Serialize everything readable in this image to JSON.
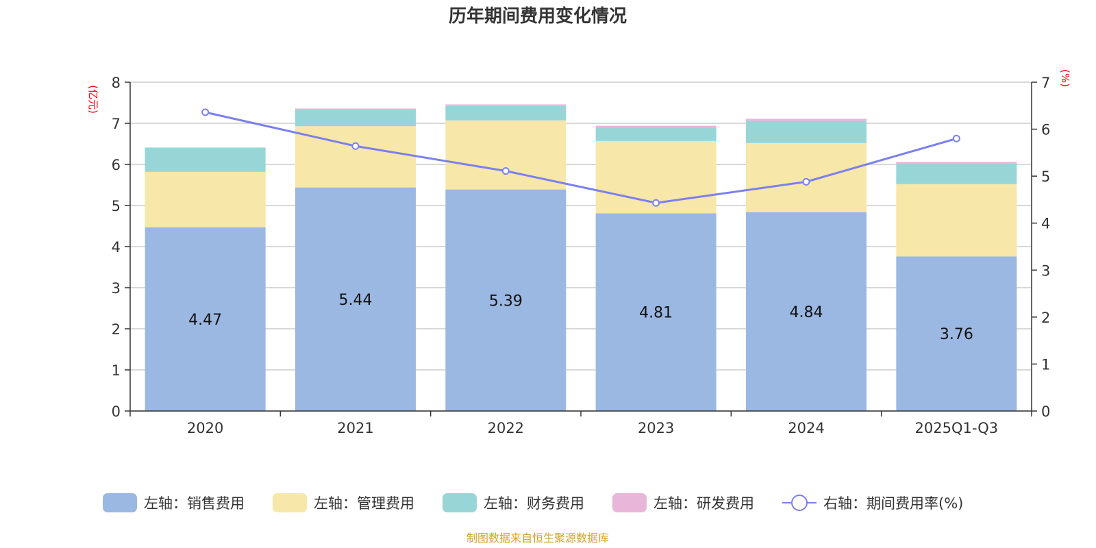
{
  "chart_data": {
    "type": "bar",
    "stacked": true,
    "title": "历年期间费用变化情况",
    "categories": [
      "2020",
      "2021",
      "2022",
      "2023",
      "2024",
      "2025Q1-Q3"
    ],
    "left_axis": {
      "unit": "(亿元)",
      "min": 0,
      "max": 8,
      "ticks": [
        "0",
        "1",
        "2",
        "3",
        "4",
        "5",
        "6",
        "7",
        "8"
      ]
    },
    "right_axis": {
      "unit": "(%)",
      "min": 0,
      "max": 7,
      "ticks": [
        "0",
        "1",
        "2",
        "3",
        "4",
        "5",
        "6",
        "7"
      ]
    },
    "series": [
      {
        "name": "左轴：销售费用",
        "axis": "left",
        "type": "bar",
        "color": "#9bb8e2",
        "values": [
          4.47,
          5.44,
          5.39,
          4.81,
          4.84,
          3.76
        ],
        "labels": [
          "4.47",
          "5.44",
          "5.39",
          "4.81",
          "4.84",
          "3.76"
        ]
      },
      {
        "name": "左轴：管理费用",
        "axis": "left",
        "type": "bar",
        "color": "#f7e7a8",
        "values": [
          1.35,
          1.49,
          1.68,
          1.76,
          1.68,
          1.76
        ]
      },
      {
        "name": "左轴：财务费用",
        "axis": "left",
        "type": "bar",
        "color": "#98d5d6",
        "values": [
          0.58,
          0.41,
          0.35,
          0.33,
          0.54,
          0.51
        ]
      },
      {
        "name": "左轴：研发费用",
        "axis": "left",
        "type": "bar",
        "color": "#e8b6d9",
        "values": [
          0.01,
          0.02,
          0.04,
          0.04,
          0.05,
          0.03
        ]
      },
      {
        "name": "右轴：期间费用率(%)",
        "axis": "right",
        "type": "line",
        "color": "#7b7ff0",
        "values": [
          6.36,
          5.64,
          5.11,
          4.43,
          4.88,
          5.8
        ]
      }
    ],
    "legend_position": "bottom"
  },
  "source_note": "制图数据来自恒生聚源数据库"
}
